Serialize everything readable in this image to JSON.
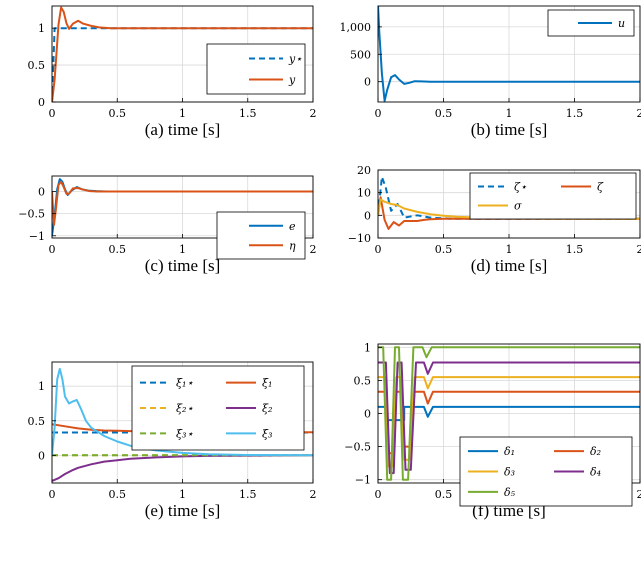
{
  "chart_data": [
    {
      "id": "a",
      "type": "line",
      "caption": "(a) time [s]",
      "xlim": [
        0,
        2
      ],
      "ylim": [
        0,
        1.3
      ],
      "xticks": [
        0,
        0.5,
        1,
        1.5,
        2
      ],
      "xticklabels": [
        "0",
        "0.5",
        "1",
        "1.5",
        "2"
      ],
      "yticks": [
        0,
        0.5,
        1
      ],
      "yticklabels": [
        "0",
        "0.5",
        "1"
      ],
      "grid": true,
      "legend_position": "right",
      "series": [
        {
          "name": "y⋆",
          "color": "#0072bd",
          "style": "dashed",
          "x": [
            0,
            0.02,
            2
          ],
          "y": [
            0,
            1,
            1
          ]
        },
        {
          "name": "y",
          "color": "#d95319",
          "style": "solid",
          "x": [
            0,
            0.02,
            0.05,
            0.07,
            0.09,
            0.11,
            0.13,
            0.16,
            0.2,
            0.24,
            0.3,
            0.36,
            0.45,
            0.6,
            0.8,
            2
          ],
          "y": [
            0,
            0.3,
            1.05,
            1.28,
            1.22,
            1.07,
            0.99,
            1.06,
            1.1,
            1.06,
            1.03,
            1.01,
            1.0,
            1.0,
            1.0,
            1.0
          ]
        }
      ]
    },
    {
      "id": "b",
      "type": "line",
      "caption": "(b) time [s]",
      "xlim": [
        0,
        2
      ],
      "ylim": [
        -370,
        1380
      ],
      "xticks": [
        0,
        0.5,
        1,
        1.5,
        2
      ],
      "xticklabels": [
        "0",
        "0.5",
        "1",
        "1.5",
        "2"
      ],
      "yticks": [
        0,
        500,
        1000
      ],
      "yticklabels": [
        "0",
        "500",
        "1,000"
      ],
      "grid": true,
      "legend_position": "top-right",
      "series": [
        {
          "name": "u",
          "color": "#0072bd",
          "style": "solid",
          "x": [
            0,
            0.01,
            0.03,
            0.05,
            0.07,
            0.1,
            0.13,
            0.16,
            0.2,
            0.24,
            0.28,
            0.33,
            0.4,
            0.5,
            2
          ],
          "y": [
            1400,
            900,
            150,
            -350,
            -150,
            80,
            120,
            40,
            -40,
            -20,
            10,
            5,
            0,
            0,
            0
          ]
        }
      ]
    },
    {
      "id": "c",
      "type": "line",
      "caption": "(c) time [s]",
      "xlim": [
        0,
        2
      ],
      "ylim": [
        -1.05,
        0.35
      ],
      "xticks": [
        0,
        0.5,
        1,
        1.5,
        2
      ],
      "xticklabels": [
        "0",
        "0.5",
        "1",
        "1.5",
        "2"
      ],
      "yticks": [
        -1,
        -0.5,
        0
      ],
      "yticklabels": [
        "−1",
        "−0.5",
        "0"
      ],
      "grid": true,
      "legend_position": "bottom-right",
      "series": [
        {
          "name": "e",
          "color": "#0072bd",
          "style": "solid",
          "x": [
            0,
            0.02,
            0.04,
            0.06,
            0.08,
            0.1,
            0.12,
            0.15,
            0.19,
            0.23,
            0.28,
            0.34,
            0.42,
            0.55,
            0.7,
            2
          ],
          "y": [
            -1,
            -0.55,
            0.05,
            0.28,
            0.22,
            0.05,
            -0.08,
            0.02,
            0.1,
            0.05,
            0.02,
            0.01,
            0.0,
            0.0,
            0.0,
            0.0
          ]
        },
        {
          "name": "η",
          "color": "#d95319",
          "style": "solid",
          "x": [
            0,
            0.015,
            0.03,
            0.05,
            0.07,
            0.09,
            0.11,
            0.13,
            0.16,
            0.2,
            0.24,
            0.29,
            0.35,
            0.45,
            0.6,
            2
          ],
          "y": [
            0,
            -0.75,
            -0.4,
            0.15,
            0.22,
            0.1,
            -0.05,
            -0.05,
            0.07,
            0.08,
            0.04,
            0.01,
            0.0,
            0.0,
            0.0,
            0.0
          ]
        }
      ]
    },
    {
      "id": "d",
      "type": "line",
      "caption": "(d) time [s]",
      "xlim": [
        0,
        2
      ],
      "ylim": [
        -10,
        20
      ],
      "xticks": [
        0,
        0.5,
        1,
        1.5,
        2
      ],
      "xticklabels": [
        "0",
        "0.5",
        "1",
        "1.5",
        "2"
      ],
      "yticks": [
        -10,
        0,
        10,
        20
      ],
      "yticklabels": [
        "−10",
        "0",
        "10",
        "20"
      ],
      "grid": true,
      "legend_position": "top-right",
      "series": [
        {
          "name": "ζ⋆",
          "color": "#0072bd",
          "style": "dashed",
          "x": [
            0,
            0.03,
            0.06,
            0.1,
            0.15,
            0.2,
            0.3,
            0.4,
            0.55,
            0.8,
            2
          ],
          "y": [
            0,
            17,
            12,
            2,
            5,
            -1,
            0,
            -1,
            -1.5,
            -1.5,
            -1.5
          ]
        },
        {
          "name": "ζ",
          "color": "#d95319",
          "style": "solid",
          "x": [
            0,
            0.02,
            0.05,
            0.08,
            0.12,
            0.16,
            0.2,
            0.25,
            0.3,
            0.35,
            0.4,
            0.5,
            0.7,
            1.0,
            2
          ],
          "y": [
            0,
            8,
            -2,
            -6,
            -3,
            -4.5,
            -2.5,
            -2.5,
            -2.5,
            -2,
            -1.7,
            -1.5,
            -1.5,
            -1.5,
            -1.5
          ]
        },
        {
          "name": "σ",
          "color": "#edb120",
          "style": "solid",
          "x": [
            0,
            0.02,
            0.05,
            0.1,
            0.15,
            0.2,
            0.3,
            0.4,
            0.5,
            0.6,
            0.8,
            1.0,
            1.3,
            2
          ],
          "y": [
            0,
            7,
            6,
            5,
            4.5,
            3,
            1.5,
            0.5,
            -0.2,
            -0.6,
            -1.1,
            -1.3,
            -1.45,
            -1.5
          ]
        }
      ]
    },
    {
      "id": "e",
      "type": "line",
      "caption": "(e) time [s]",
      "xlim": [
        0,
        2
      ],
      "ylim": [
        -0.4,
        1.35
      ],
      "xticks": [
        0,
        0.5,
        1,
        1.5,
        2
      ],
      "xticklabels": [
        "0",
        "0.5",
        "1",
        "1.5",
        "2"
      ],
      "yticks": [
        0,
        0.5,
        1
      ],
      "yticklabels": [
        "0",
        "0.5",
        "1"
      ],
      "grid": true,
      "legend_position": "top-right",
      "series": [
        {
          "name": "ξ₁⋆",
          "color": "#0072bd",
          "style": "dashed",
          "x": [
            0,
            0.01,
            2
          ],
          "y": [
            0.33,
            0.33,
            0.33
          ]
        },
        {
          "name": "ξ₁",
          "color": "#d95319",
          "style": "solid",
          "x": [
            0,
            0.1,
            0.2,
            0.3,
            0.4,
            0.5,
            0.6,
            0.8,
            1.0,
            1.25,
            1.5,
            2
          ],
          "y": [
            0.45,
            0.42,
            0.39,
            0.37,
            0.36,
            0.355,
            0.35,
            0.345,
            0.34,
            0.335,
            0.333,
            0.333
          ]
        },
        {
          "name": "ξ₂⋆",
          "color": "#edb120",
          "style": "dashed",
          "x": [
            0,
            2
          ],
          "y": [
            0,
            0
          ]
        },
        {
          "name": "ξ₂",
          "color": "#7e2f8e",
          "style": "solid",
          "x": [
            0,
            0.05,
            0.1,
            0.15,
            0.2,
            0.3,
            0.4,
            0.5,
            0.6,
            0.8,
            1.0,
            1.2,
            1.5,
            2
          ],
          "y": [
            -0.37,
            -0.33,
            -0.27,
            -0.22,
            -0.18,
            -0.13,
            -0.09,
            -0.07,
            -0.05,
            -0.03,
            -0.015,
            -0.008,
            -0.003,
            0
          ]
        },
        {
          "name": "ξ₃⋆",
          "color": "#77ac30",
          "style": "dashed",
          "x": [
            0,
            2
          ],
          "y": [
            0,
            0
          ]
        },
        {
          "name": "ξ₃",
          "color": "#4dbeee",
          "style": "solid",
          "x": [
            0,
            0.02,
            0.04,
            0.06,
            0.08,
            0.1,
            0.13,
            0.16,
            0.19,
            0.22,
            0.26,
            0.3,
            0.35,
            0.4,
            0.5,
            0.6,
            0.7,
            0.8,
            1.0,
            1.2,
            1.5,
            2
          ],
          "y": [
            0,
            0.4,
            1.1,
            1.25,
            1.1,
            0.85,
            0.75,
            0.78,
            0.8,
            0.68,
            0.5,
            0.4,
            0.34,
            0.28,
            0.2,
            0.14,
            0.1,
            0.07,
            0.035,
            0.015,
            0.005,
            0
          ]
        }
      ]
    },
    {
      "id": "f",
      "type": "line",
      "caption": "(f) time [s]",
      "xlim": [
        0,
        2
      ],
      "ylim": [
        -1.05,
        1.05
      ],
      "xticks": [
        0,
        0.5,
        1,
        1.5,
        2
      ],
      "xticklabels": [
        "0",
        "0.5",
        "1",
        "1.5",
        "2"
      ],
      "yticks": [
        -1,
        -0.5,
        0,
        0.5,
        1
      ],
      "yticklabels": [
        "−1",
        "−0.5",
        "0",
        "0.5",
        "1"
      ],
      "grid": true,
      "legend_position": "bottom-right",
      "series": [
        {
          "name": "δ₁",
          "color": "#0072bd",
          "style": "solid",
          "x": [
            0,
            0.07,
            0.07,
            0.2,
            0.2,
            0.35,
            0.38,
            0.42,
            0.45,
            2
          ],
          "y": [
            0.1,
            0.1,
            -0.1,
            -0.1,
            0.1,
            0.1,
            -0.05,
            0.1,
            0.1,
            0.1
          ]
        },
        {
          "name": "δ₂",
          "color": "#d95319",
          "style": "solid",
          "x": [
            0,
            0.05,
            0.08,
            0.11,
            0.14,
            0.17,
            0.2,
            0.24,
            0.28,
            0.32,
            0.35,
            0.38,
            0.42,
            0.45,
            2
          ],
          "y": [
            0.33,
            0.33,
            -0.6,
            -0.6,
            0.33,
            0.33,
            -0.5,
            -0.5,
            0.33,
            0.33,
            0.33,
            0.15,
            0.33,
            0.33,
            0.33
          ]
        },
        {
          "name": "δ₃",
          "color": "#edb120",
          "style": "solid",
          "x": [
            0,
            0.05,
            0.08,
            0.11,
            0.14,
            0.17,
            0.2,
            0.24,
            0.28,
            0.32,
            0.35,
            0.38,
            0.42,
            0.45,
            2
          ],
          "y": [
            0.55,
            0.55,
            -0.8,
            -0.8,
            0.55,
            0.55,
            -0.7,
            -0.7,
            0.55,
            0.55,
            0.55,
            0.38,
            0.55,
            0.55,
            0.55
          ]
        },
        {
          "name": "δ₄",
          "color": "#7e2f8e",
          "style": "solid",
          "x": [
            0,
            0.06,
            0.09,
            0.12,
            0.15,
            0.18,
            0.21,
            0.25,
            0.29,
            0.32,
            0.35,
            0.38,
            0.42,
            0.45,
            2
          ],
          "y": [
            0.77,
            0.77,
            -0.9,
            -0.9,
            0.77,
            0.77,
            -0.85,
            -0.85,
            0.77,
            0.77,
            0.77,
            0.6,
            0.77,
            0.77,
            0.77
          ]
        },
        {
          "name": "δ₅",
          "color": "#77ac30",
          "style": "solid",
          "x": [
            0,
            0.04,
            0.07,
            0.1,
            0.13,
            0.16,
            0.19,
            0.23,
            0.27,
            0.31,
            0.34,
            0.37,
            0.41,
            0.45,
            2
          ],
          "y": [
            1,
            1,
            -1,
            -1,
            1,
            1,
            -1,
            -1,
            1,
            1,
            1,
            0.85,
            1,
            1,
            1
          ]
        }
      ]
    }
  ]
}
